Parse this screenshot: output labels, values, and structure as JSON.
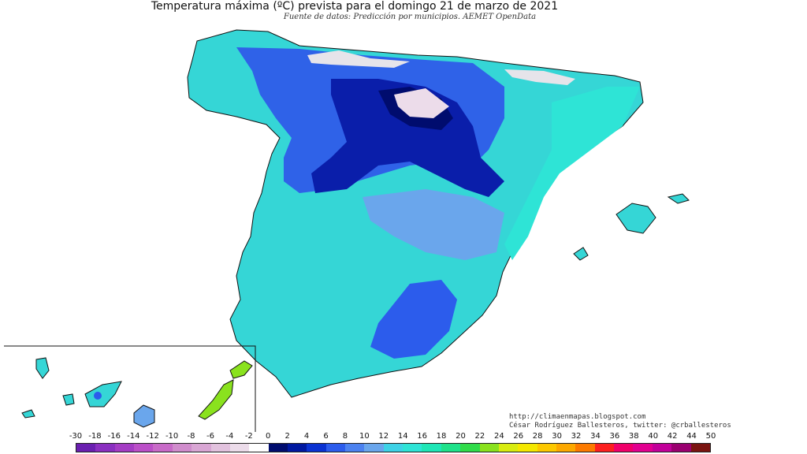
{
  "title": "Temperatura máxima (ºC) prevista para el domingo 21 de marzo de 2021",
  "subtitle": "Fuente de datos: Predicción por municipios. AEMET OpenData",
  "credits": {
    "url": "http://climaenmapas.blogspot.com",
    "author": "César Rodríguez Ballesteros, twitter: @crballesteros"
  },
  "legend": {
    "ticks": [
      "-30",
      "-18",
      "-16",
      "-14",
      "-12",
      "-10",
      "-8",
      "-6",
      "-4",
      "-2",
      "0",
      "2",
      "4",
      "6",
      "8",
      "10",
      "12",
      "14",
      "16",
      "18",
      "20",
      "22",
      "24",
      "26",
      "28",
      "30",
      "32",
      "34",
      "36",
      "38",
      "40",
      "42",
      "44",
      "50"
    ],
    "colors": [
      "#6a1fb0",
      "#8a2fc0",
      "#a43cc4",
      "#bb4fc8",
      "#c86ac8",
      "#d08ccc",
      "#d9a6d4",
      "#e2c2de",
      "#ecdcea",
      "#ffffff",
      "#000c6e",
      "#0018a0",
      "#0a32d2",
      "#2c5cec",
      "#4c82f0",
      "#6aa6ec",
      "#3ed2e6",
      "#2ee4d6",
      "#1ee6b6",
      "#1ee28a",
      "#30dc4a",
      "#8ae21e",
      "#d8ec10",
      "#f4e800",
      "#fcc800",
      "#fca800",
      "#fc7a00",
      "#fc2020",
      "#f0006a",
      "#e20090",
      "#c2009a",
      "#9a0070",
      "#7a1410"
    ]
  }
}
